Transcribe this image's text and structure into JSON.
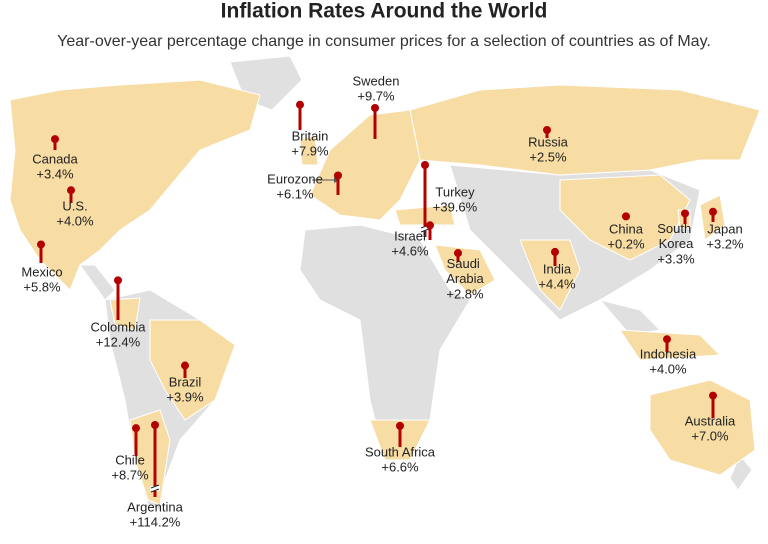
{
  "title": "Inflation Rates Around the World",
  "subtitle": "Year-over-year percentage change in consumer prices for a selection of countries as of May.",
  "countries": [
    {
      "name": "Canada",
      "value": 3.4,
      "value_label": "+3.4%"
    },
    {
      "name": "U.S.",
      "value": 4.0,
      "value_label": "+4.0%"
    },
    {
      "name": "Mexico",
      "value": 5.8,
      "value_label": "+5.8%"
    },
    {
      "name": "Colombia",
      "value": 12.4,
      "value_label": "+12.4%"
    },
    {
      "name": "Brazil",
      "value": 3.9,
      "value_label": "+3.9%"
    },
    {
      "name": "Chile",
      "value": 8.7,
      "value_label": "+8.7%"
    },
    {
      "name": "Argentina",
      "value": 114.2,
      "value_label": "+114.2%"
    },
    {
      "name": "South Africa",
      "value": 6.6,
      "value_label": "+6.6%"
    },
    {
      "name": "Britain",
      "value": 7.9,
      "value_label": "+7.9%"
    },
    {
      "name": "Eurozone",
      "value": 6.1,
      "value_label": "+6.1%"
    },
    {
      "name": "Sweden",
      "value": 9.7,
      "value_label": "+9.7%"
    },
    {
      "name": "Turkey",
      "value": 39.6,
      "value_label": "+39.6%"
    },
    {
      "name": "Israel",
      "value": 4.6,
      "value_label": "+4.6%"
    },
    {
      "name": "Saudi Arabia",
      "value": 2.8,
      "value_label": "+2.8%"
    },
    {
      "name": "Russia",
      "value": 2.5,
      "value_label": "+2.5%"
    },
    {
      "name": "India",
      "value": 4.4,
      "value_label": "+4.4%"
    },
    {
      "name": "China",
      "value": 0.2,
      "value_label": "+0.2%"
    },
    {
      "name": "South Korea",
      "value": 3.3,
      "value_label": "+3.3%"
    },
    {
      "name": "Japan",
      "value": 3.2,
      "value_label": "+3.2%"
    },
    {
      "name": "Indonesia",
      "value": 4.0,
      "value_label": "+4.0%"
    },
    {
      "name": "Australia",
      "value": 7.0,
      "value_label": "+7.0%"
    }
  ]
}
